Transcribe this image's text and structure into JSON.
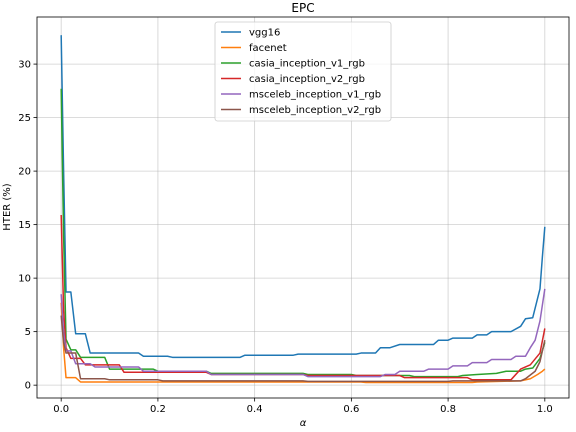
{
  "chart_data": {
    "type": "line",
    "title": "EPC",
    "xlabel": "α",
    "ylabel": "HTER (%)",
    "xlim": [
      -0.05,
      1.05
    ],
    "ylim": [
      -1.2,
      34.4
    ],
    "xticks": [
      0.0,
      0.2,
      0.4,
      0.6,
      0.8,
      1.0
    ],
    "xtick_labels": [
      "0.0",
      "0.2",
      "0.4",
      "0.6",
      "0.8",
      "1.0"
    ],
    "yticks": [
      0,
      5,
      10,
      15,
      20,
      25,
      30
    ],
    "ytick_labels": [
      "0",
      "5",
      "10",
      "15",
      "20",
      "25",
      "30"
    ],
    "grid": true,
    "legend_position": "upper center",
    "series": [
      {
        "name": "vgg16",
        "color": "#1f77b4",
        "points": [
          [
            0.0,
            32.7
          ],
          [
            0.005,
            20.0
          ],
          [
            0.01,
            8.7
          ],
          [
            0.02,
            8.7
          ],
          [
            0.03,
            4.8
          ],
          [
            0.05,
            4.8
          ],
          [
            0.06,
            3.0
          ],
          [
            0.16,
            3.0
          ],
          [
            0.17,
            2.7
          ],
          [
            0.22,
            2.7
          ],
          [
            0.23,
            2.6
          ],
          [
            0.37,
            2.6
          ],
          [
            0.38,
            2.8
          ],
          [
            0.48,
            2.8
          ],
          [
            0.49,
            2.9
          ],
          [
            0.61,
            2.9
          ],
          [
            0.62,
            3.0
          ],
          [
            0.65,
            3.0
          ],
          [
            0.66,
            3.5
          ],
          [
            0.68,
            3.5
          ],
          [
            0.7,
            3.8
          ],
          [
            0.77,
            3.8
          ],
          [
            0.78,
            4.2
          ],
          [
            0.8,
            4.2
          ],
          [
            0.81,
            4.4
          ],
          [
            0.85,
            4.4
          ],
          [
            0.86,
            4.7
          ],
          [
            0.88,
            4.7
          ],
          [
            0.89,
            5.0
          ],
          [
            0.93,
            5.0
          ],
          [
            0.95,
            5.5
          ],
          [
            0.96,
            6.2
          ],
          [
            0.975,
            6.3
          ],
          [
            0.99,
            9.0
          ],
          [
            0.995,
            12.0
          ],
          [
            1.0,
            14.8
          ]
        ]
      },
      {
        "name": "facenet",
        "color": "#ff7f0e",
        "points": [
          [
            0.0,
            7.7
          ],
          [
            0.005,
            3.5
          ],
          [
            0.01,
            0.7
          ],
          [
            0.03,
            0.7
          ],
          [
            0.04,
            0.3
          ],
          [
            0.62,
            0.3
          ],
          [
            0.63,
            0.25
          ],
          [
            0.85,
            0.25
          ],
          [
            0.86,
            0.3
          ],
          [
            0.95,
            0.4
          ],
          [
            0.97,
            0.6
          ],
          [
            0.985,
            1.0
          ],
          [
            0.995,
            1.3
          ],
          [
            1.0,
            1.5
          ]
        ]
      },
      {
        "name": "casia_inception_v1_rgb",
        "color": "#2ca02c",
        "points": [
          [
            0.0,
            27.7
          ],
          [
            0.005,
            14.0
          ],
          [
            0.01,
            4.3
          ],
          [
            0.02,
            3.3
          ],
          [
            0.03,
            3.3
          ],
          [
            0.04,
            2.6
          ],
          [
            0.09,
            2.6
          ],
          [
            0.1,
            1.5
          ],
          [
            0.19,
            1.5
          ],
          [
            0.2,
            1.3
          ],
          [
            0.3,
            1.3
          ],
          [
            0.31,
            1.1
          ],
          [
            0.5,
            1.1
          ],
          [
            0.51,
            1.0
          ],
          [
            0.6,
            1.0
          ],
          [
            0.61,
            0.9
          ],
          [
            0.72,
            0.9
          ],
          [
            0.73,
            0.8
          ],
          [
            0.82,
            0.8
          ],
          [
            0.83,
            0.9
          ],
          [
            0.86,
            1.0
          ],
          [
            0.9,
            1.1
          ],
          [
            0.92,
            1.3
          ],
          [
            0.95,
            1.3
          ],
          [
            0.96,
            1.5
          ],
          [
            0.975,
            1.6
          ],
          [
            0.99,
            2.5
          ],
          [
            1.0,
            4.0
          ]
        ]
      },
      {
        "name": "casia_inception_v2_rgb",
        "color": "#d62728",
        "points": [
          [
            0.0,
            15.9
          ],
          [
            0.005,
            7.0
          ],
          [
            0.01,
            3.5
          ],
          [
            0.02,
            2.5
          ],
          [
            0.04,
            2.5
          ],
          [
            0.05,
            1.9
          ],
          [
            0.12,
            1.9
          ],
          [
            0.13,
            1.2
          ],
          [
            0.3,
            1.2
          ],
          [
            0.31,
            1.0
          ],
          [
            0.5,
            1.0
          ],
          [
            0.51,
            0.9
          ],
          [
            0.7,
            0.9
          ],
          [
            0.71,
            0.7
          ],
          [
            0.84,
            0.7
          ],
          [
            0.85,
            0.5
          ],
          [
            0.93,
            0.5
          ],
          [
            0.95,
            1.5
          ],
          [
            0.97,
            1.9
          ],
          [
            0.99,
            3.0
          ],
          [
            1.0,
            5.3
          ]
        ]
      },
      {
        "name": "msceleb_inception_v1_rgb",
        "color": "#9467bd",
        "points": [
          [
            0.0,
            8.5
          ],
          [
            0.005,
            5.0
          ],
          [
            0.01,
            3.2
          ],
          [
            0.02,
            3.2
          ],
          [
            0.03,
            2.0
          ],
          [
            0.06,
            2.0
          ],
          [
            0.07,
            1.7
          ],
          [
            0.16,
            1.7
          ],
          [
            0.17,
            1.3
          ],
          [
            0.3,
            1.3
          ],
          [
            0.31,
            1.0
          ],
          [
            0.5,
            1.0
          ],
          [
            0.51,
            0.8
          ],
          [
            0.66,
            0.8
          ],
          [
            0.67,
            1.0
          ],
          [
            0.69,
            1.0
          ],
          [
            0.7,
            1.3
          ],
          [
            0.75,
            1.3
          ],
          [
            0.76,
            1.5
          ],
          [
            0.8,
            1.5
          ],
          [
            0.81,
            1.8
          ],
          [
            0.84,
            1.8
          ],
          [
            0.85,
            2.1
          ],
          [
            0.88,
            2.1
          ],
          [
            0.89,
            2.4
          ],
          [
            0.93,
            2.4
          ],
          [
            0.94,
            2.7
          ],
          [
            0.96,
            2.7
          ],
          [
            0.97,
            3.5
          ],
          [
            0.98,
            4.2
          ],
          [
            0.99,
            6.0
          ],
          [
            1.0,
            9.0
          ]
        ]
      },
      {
        "name": "msceleb_inception_v2_rgb",
        "color": "#8c564b",
        "points": [
          [
            0.0,
            6.5
          ],
          [
            0.005,
            4.0
          ],
          [
            0.01,
            3.0
          ],
          [
            0.03,
            3.0
          ],
          [
            0.04,
            0.6
          ],
          [
            0.09,
            0.6
          ],
          [
            0.1,
            0.5
          ],
          [
            0.2,
            0.5
          ],
          [
            0.21,
            0.4
          ],
          [
            0.5,
            0.4
          ],
          [
            0.51,
            0.35
          ],
          [
            0.8,
            0.35
          ],
          [
            0.81,
            0.4
          ],
          [
            0.95,
            0.4
          ],
          [
            0.96,
            0.6
          ],
          [
            0.98,
            1.3
          ],
          [
            0.99,
            2.2
          ],
          [
            1.0,
            4.2
          ]
        ]
      }
    ]
  }
}
